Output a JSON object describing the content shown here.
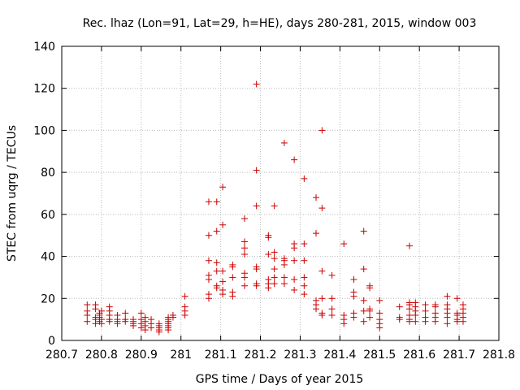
{
  "chart_data": {
    "type": "scatter",
    "title": "Rec. lhaz (Lon=91, Lat=29, h=HE), days 280-281, 2015, window 003",
    "xlabel": "GPS time / Days of year 2015",
    "ylabel": "STEC from uqrg / TECUs",
    "xlim": [
      280.7,
      281.8
    ],
    "ylim": [
      0,
      140
    ],
    "x_ticks": [
      "280.7",
      "280.8",
      "280.9",
      "281",
      "281.1",
      "281.2",
      "281.3",
      "281.4",
      "281.5",
      "281.6",
      "281.7",
      "281.8"
    ],
    "y_ticks": [
      "0",
      "20",
      "40",
      "60",
      "80",
      "100",
      "120",
      "140"
    ],
    "grid": true,
    "marker": "+",
    "marker_color": "#cc0000",
    "series": [
      {
        "points": [
          [
            280.764,
            9
          ],
          [
            280.764,
            12
          ],
          [
            280.764,
            14
          ],
          [
            280.764,
            17
          ],
          [
            280.785,
            8
          ],
          [
            280.785,
            10
          ],
          [
            280.785,
            11
          ],
          [
            280.785,
            15
          ],
          [
            280.785,
            17
          ],
          [
            280.795,
            9
          ],
          [
            280.795,
            11
          ],
          [
            280.795,
            12
          ],
          [
            280.795,
            13
          ],
          [
            280.8,
            8
          ],
          [
            280.8,
            10
          ],
          [
            280.8,
            14
          ],
          [
            280.82,
            9
          ],
          [
            280.82,
            10
          ],
          [
            280.82,
            12
          ],
          [
            280.82,
            14
          ],
          [
            280.82,
            16
          ],
          [
            280.84,
            8
          ],
          [
            280.84,
            9
          ],
          [
            280.84,
            10
          ],
          [
            280.84,
            12
          ],
          [
            280.86,
            9
          ],
          [
            280.86,
            10
          ],
          [
            280.86,
            13
          ],
          [
            280.88,
            7
          ],
          [
            280.88,
            8
          ],
          [
            280.88,
            9
          ],
          [
            280.88,
            10
          ],
          [
            280.9,
            6
          ],
          [
            280.9,
            8
          ],
          [
            280.9,
            10
          ],
          [
            280.9,
            13
          ],
          [
            280.91,
            5
          ],
          [
            280.91,
            7
          ],
          [
            280.91,
            9
          ],
          [
            280.91,
            11
          ],
          [
            280.925,
            6
          ],
          [
            280.925,
            8
          ],
          [
            280.925,
            10
          ],
          [
            280.945,
            4
          ],
          [
            280.945,
            5
          ],
          [
            280.945,
            6
          ],
          [
            280.945,
            7
          ],
          [
            280.945,
            8
          ],
          [
            280.968,
            5
          ],
          [
            280.968,
            6
          ],
          [
            280.968,
            7
          ],
          [
            280.968,
            8
          ],
          [
            280.968,
            9
          ],
          [
            280.968,
            10
          ],
          [
            280.968,
            11
          ],
          [
            280.98,
            11
          ],
          [
            280.98,
            12
          ],
          [
            281.01,
            12
          ],
          [
            281.01,
            14
          ],
          [
            281.01,
            16
          ],
          [
            281.01,
            21
          ],
          [
            281.07,
            20
          ],
          [
            281.07,
            22
          ],
          [
            281.07,
            29
          ],
          [
            281.07,
            31
          ],
          [
            281.07,
            38
          ],
          [
            281.07,
            50
          ],
          [
            281.07,
            66
          ],
          [
            281.09,
            25
          ],
          [
            281.09,
            26
          ],
          [
            281.09,
            33
          ],
          [
            281.09,
            37
          ],
          [
            281.09,
            52
          ],
          [
            281.09,
            66
          ],
          [
            281.105,
            22
          ],
          [
            281.105,
            24
          ],
          [
            281.105,
            28
          ],
          [
            281.105,
            33
          ],
          [
            281.105,
            55
          ],
          [
            281.105,
            73
          ],
          [
            281.13,
            21
          ],
          [
            281.13,
            23
          ],
          [
            281.13,
            30
          ],
          [
            281.13,
            35
          ],
          [
            281.13,
            36
          ],
          [
            281.16,
            26
          ],
          [
            281.16,
            30
          ],
          [
            281.16,
            32
          ],
          [
            281.16,
            41
          ],
          [
            281.16,
            44
          ],
          [
            281.16,
            47
          ],
          [
            281.16,
            58
          ],
          [
            281.19,
            26
          ],
          [
            281.19,
            27
          ],
          [
            281.19,
            34
          ],
          [
            281.19,
            35
          ],
          [
            281.19,
            64
          ],
          [
            281.19,
            81
          ],
          [
            281.19,
            122
          ],
          [
            281.22,
            25
          ],
          [
            281.22,
            27
          ],
          [
            281.22,
            29
          ],
          [
            281.22,
            41
          ],
          [
            281.22,
            49
          ],
          [
            281.22,
            50
          ],
          [
            281.235,
            27
          ],
          [
            281.235,
            30
          ],
          [
            281.235,
            34
          ],
          [
            281.235,
            39
          ],
          [
            281.235,
            42
          ],
          [
            281.235,
            64
          ],
          [
            281.26,
            27
          ],
          [
            281.26,
            30
          ],
          [
            281.26,
            36
          ],
          [
            281.26,
            38
          ],
          [
            281.26,
            39
          ],
          [
            281.26,
            94
          ],
          [
            281.285,
            24
          ],
          [
            281.285,
            29
          ],
          [
            281.285,
            38
          ],
          [
            281.285,
            44
          ],
          [
            281.285,
            46
          ],
          [
            281.285,
            86
          ],
          [
            281.31,
            22
          ],
          [
            281.31,
            26
          ],
          [
            281.31,
            30
          ],
          [
            281.31,
            38
          ],
          [
            281.31,
            46
          ],
          [
            281.31,
            77
          ],
          [
            281.34,
            15
          ],
          [
            281.34,
            17
          ],
          [
            281.34,
            19
          ],
          [
            281.34,
            51
          ],
          [
            281.34,
            68
          ],
          [
            281.355,
            12
          ],
          [
            281.355,
            13
          ],
          [
            281.355,
            20
          ],
          [
            281.355,
            33
          ],
          [
            281.355,
            63
          ],
          [
            281.355,
            100
          ],
          [
            281.38,
            12
          ],
          [
            281.38,
            15
          ],
          [
            281.38,
            20
          ],
          [
            281.38,
            31
          ],
          [
            281.41,
            8
          ],
          [
            281.41,
            10
          ],
          [
            281.41,
            12
          ],
          [
            281.41,
            46
          ],
          [
            281.435,
            11
          ],
          [
            281.435,
            13
          ],
          [
            281.435,
            21
          ],
          [
            281.435,
            23
          ],
          [
            281.435,
            29
          ],
          [
            281.46,
            9
          ],
          [
            281.46,
            14
          ],
          [
            281.46,
            19
          ],
          [
            281.46,
            34
          ],
          [
            281.46,
            52
          ],
          [
            281.475,
            11
          ],
          [
            281.475,
            14
          ],
          [
            281.475,
            15
          ],
          [
            281.475,
            25
          ],
          [
            281.475,
            26
          ],
          [
            281.5,
            6
          ],
          [
            281.5,
            8
          ],
          [
            281.5,
            10
          ],
          [
            281.5,
            13
          ],
          [
            281.5,
            19
          ],
          [
            281.55,
            10
          ],
          [
            281.55,
            11
          ],
          [
            281.55,
            16
          ],
          [
            281.575,
            9
          ],
          [
            281.575,
            10
          ],
          [
            281.575,
            12
          ],
          [
            281.575,
            15
          ],
          [
            281.575,
            17
          ],
          [
            281.575,
            18
          ],
          [
            281.575,
            45
          ],
          [
            281.59,
            9
          ],
          [
            281.59,
            12
          ],
          [
            281.59,
            14
          ],
          [
            281.59,
            16
          ],
          [
            281.59,
            18
          ],
          [
            281.615,
            9
          ],
          [
            281.615,
            11
          ],
          [
            281.615,
            14
          ],
          [
            281.615,
            17
          ],
          [
            281.64,
            9
          ],
          [
            281.64,
            11
          ],
          [
            281.64,
            13
          ],
          [
            281.64,
            16
          ],
          [
            281.64,
            17
          ],
          [
            281.67,
            8
          ],
          [
            281.67,
            11
          ],
          [
            281.67,
            13
          ],
          [
            281.67,
            15
          ],
          [
            281.67,
            17
          ],
          [
            281.67,
            21
          ],
          [
            281.695,
            9
          ],
          [
            281.695,
            10
          ],
          [
            281.695,
            12
          ],
          [
            281.695,
            13
          ],
          [
            281.695,
            20
          ],
          [
            281.71,
            9
          ],
          [
            281.71,
            11
          ],
          [
            281.71,
            13
          ],
          [
            281.71,
            15
          ],
          [
            281.71,
            17
          ]
        ]
      }
    ]
  }
}
